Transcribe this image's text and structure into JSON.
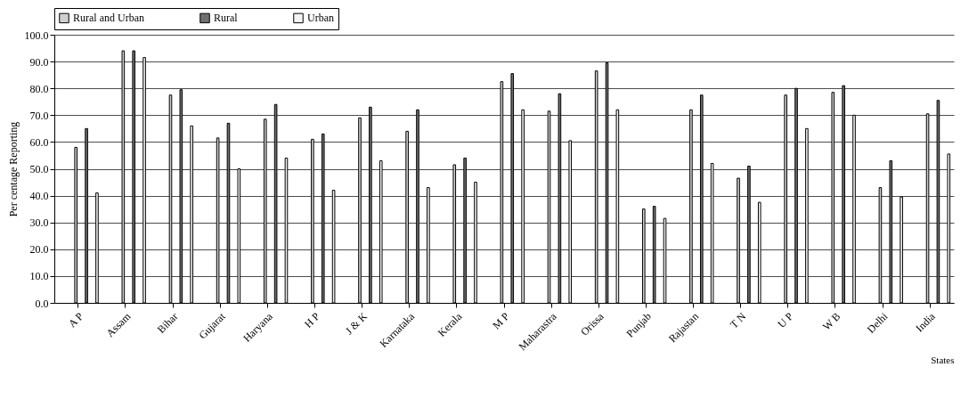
{
  "chart_data": {
    "type": "bar",
    "xlabel": "States",
    "ylabel": "Per centage Reporting",
    "categories": [
      "A P",
      "Assam",
      "Bihar",
      "Gujarat",
      "Haryana",
      "H P",
      "J & K",
      "Karnataka",
      "Kerala",
      "M P",
      "Maharastra",
      "Orissa",
      "Punjab",
      "Rajastan",
      "T N",
      "U P",
      "W B",
      "Delhi",
      "India"
    ],
    "series": [
      {
        "name": "Rural and Urban",
        "color": "#d0d0d0",
        "values": [
          58,
          94,
          77.5,
          61.5,
          68.5,
          61,
          69,
          64,
          51.5,
          82.5,
          71.5,
          86.5,
          35,
          72,
          46.5,
          77.5,
          78.5,
          43,
          70.5
        ]
      },
      {
        "name": "Rural",
        "color": "#707070",
        "values": [
          65,
          94,
          79.5,
          67,
          74,
          63,
          73,
          72,
          54,
          85.5,
          78,
          89.5,
          36,
          77.5,
          51,
          80,
          81,
          53,
          75.5
        ]
      },
      {
        "name": "Urban",
        "color": "#f4f4f4",
        "values": [
          41,
          91.5,
          66,
          50,
          54,
          42,
          53,
          43,
          45,
          72,
          60.5,
          72,
          31.5,
          52,
          37.5,
          65,
          70,
          39.5,
          55.5
        ]
      }
    ],
    "ylim": [
      0,
      100
    ],
    "yticks": [
      {
        "value": 0,
        "label": "0.0"
      },
      {
        "value": 10,
        "label": "10.0"
      },
      {
        "value": 20,
        "label": "20.0"
      },
      {
        "value": 30,
        "label": "30.0"
      },
      {
        "value": 40,
        "label": "40.0"
      },
      {
        "value": 50,
        "label": "50.0"
      },
      {
        "value": 60,
        "label": "60.0"
      },
      {
        "value": 70,
        "label": "70.0"
      },
      {
        "value": 80,
        "label": "80.0"
      },
      {
        "value": 90,
        "label": "90.0"
      },
      {
        "value": 100,
        "label": "100.0"
      }
    ],
    "grid": "y",
    "legend": "top"
  }
}
